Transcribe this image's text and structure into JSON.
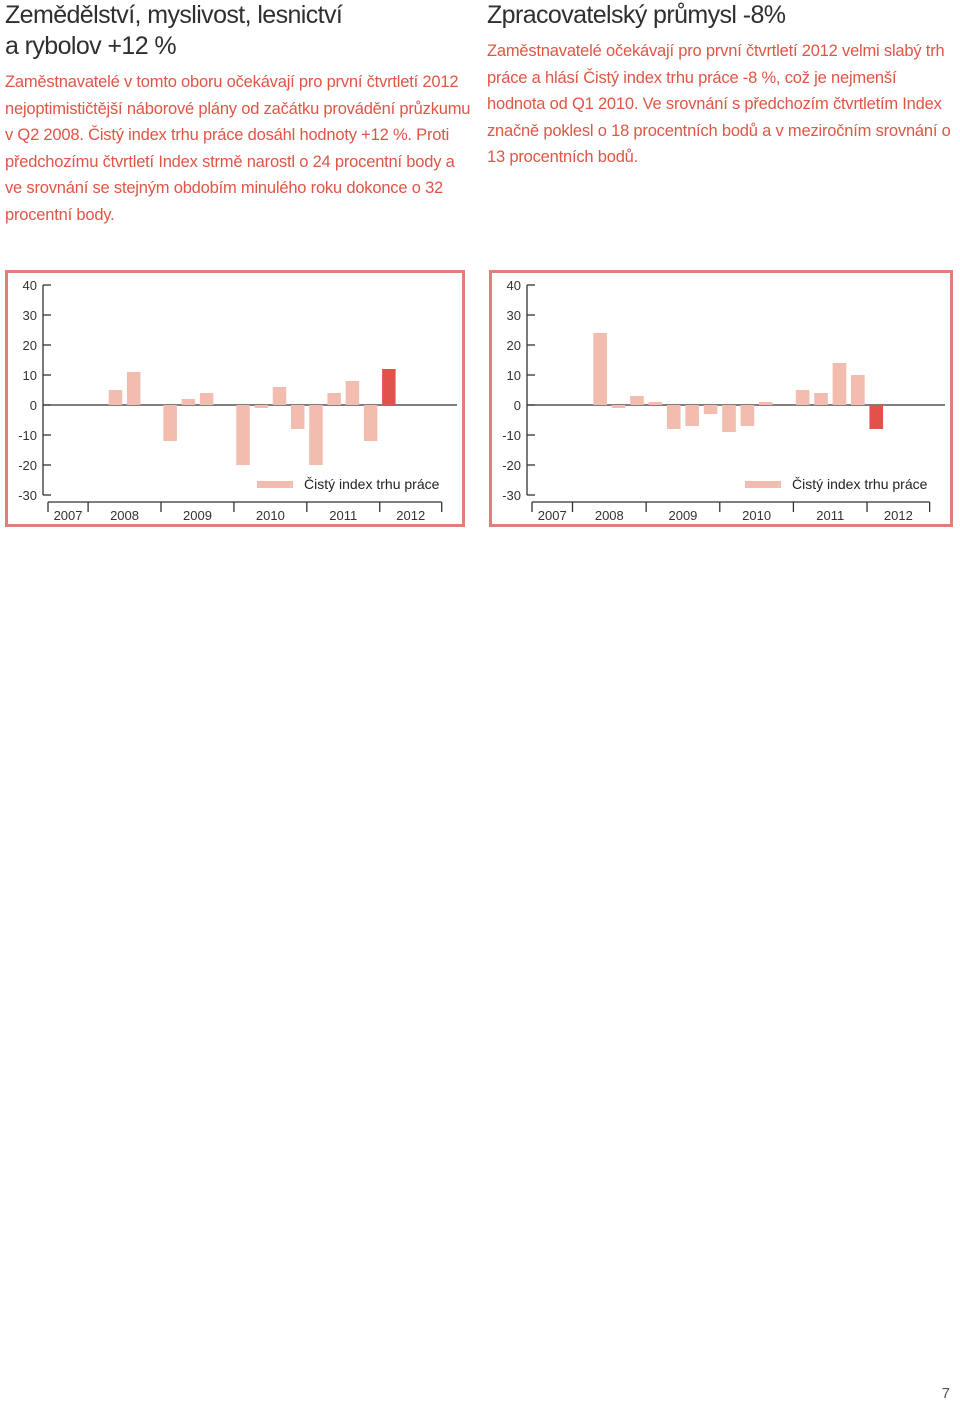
{
  "sections": [
    {
      "heading": "Zemědělství, myslivost, lesnictví\na rybolov    +12 %",
      "paragraph_accent": "Zaměstnavatelé v tomto oboru očekávají pro první čtvrtletí 2012 nejoptimističtější náborové plány od začátku provádění průzkumu v Q2 2008. Čistý index trhu práce dosáhl hodnoty +12 %.",
      "paragraph_rest": " Proti předchozímu čtvrtletí Index strmě narostl o 24 procentní body a ve srovnání se stejným obdobím minulého roku dokonce o 32 procentní body."
    },
    {
      "heading": "Zpracovatelský průmysl    -8%",
      "paragraph_accent": "",
      "paragraph_rest": "Zaměstnavatelé očekávají pro první čtvrtletí 2012 velmi slabý trh práce a hlásí Čistý index trhu práce -8 %, což je nejmenší hodnota od Q1 2010. Ve srovnání s předchozím čtvrtletím Index značně poklesl o 18 procentních bodů a v meziročním srovnání o 13 procentních bodů."
    }
  ],
  "colors": {
    "bar": "#f2bcae",
    "bar_current": "#e0524a",
    "frame": "#e07f78",
    "accent_text": "#e05545"
  },
  "chart_data": [
    {
      "type": "bar",
      "xlabel": "",
      "ylabel": "",
      "ylim": [
        -30,
        40
      ],
      "yticks": [
        40,
        30,
        20,
        10,
        0,
        -10,
        -20,
        -30
      ],
      "year_labels": [
        "2007",
        "2008",
        "2009",
        "2010",
        "2011",
        "2012"
      ],
      "legend": "Čistý index trhu práce",
      "legend_position": "bottom-right",
      "categories": [
        "Q2 2008",
        "Q3 2008",
        "Q4 2008",
        "Q1 2009",
        "Q2 2009",
        "Q3 2009",
        "Q4 2009",
        "Q1 2010",
        "Q2 2010",
        "Q3 2010",
        "Q4 2010",
        "Q1 2011",
        "Q2 2011",
        "Q3 2011",
        "Q4 2011",
        "Q1 2012"
      ],
      "values": [
        5,
        11,
        0,
        -12,
        2,
        4,
        0,
        -20,
        -1,
        6,
        -8,
        -20,
        4,
        8,
        -12,
        12
      ],
      "highlight_last": true
    },
    {
      "type": "bar",
      "xlabel": "",
      "ylabel": "",
      "ylim": [
        -30,
        40
      ],
      "yticks": [
        40,
        30,
        20,
        10,
        0,
        -10,
        -20,
        -30
      ],
      "year_labels": [
        "2007",
        "2008",
        "2009",
        "2010",
        "2011",
        "2012"
      ],
      "legend": "Čistý index trhu práce",
      "legend_position": "bottom-right",
      "categories": [
        "Q2 2008",
        "Q3 2008",
        "Q4 2008",
        "Q1 2009",
        "Q2 2009",
        "Q3 2009",
        "Q4 2009",
        "Q1 2010",
        "Q2 2010",
        "Q3 2010",
        "Q4 2010",
        "Q1 2011",
        "Q2 2011",
        "Q3 2011",
        "Q4 2011",
        "Q1 2012"
      ],
      "values": [
        24,
        -1,
        3,
        1,
        -8,
        -7,
        -3,
        -9,
        -7,
        1,
        0,
        5,
        4,
        14,
        10,
        -8
      ],
      "highlight_last": true
    }
  ],
  "page_number": "7"
}
